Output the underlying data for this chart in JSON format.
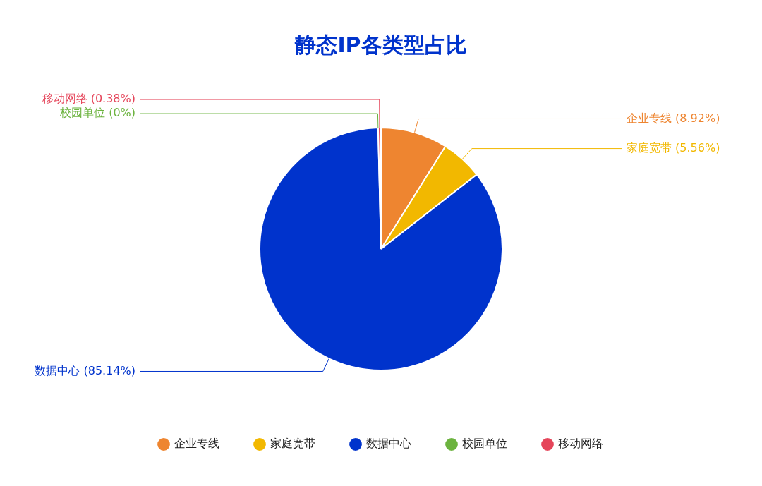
{
  "chart_data": {
    "type": "pie",
    "title": "静态IP各类型占比",
    "categories": [
      "企业专线",
      "家庭宽带",
      "数据中心",
      "校园单位",
      "移动网络"
    ],
    "values": [
      8.92,
      5.56,
      85.14,
      0,
      0.38
    ],
    "value_labels": [
      "(8.92%)",
      "(5.56%)",
      "(85.14%)",
      "(0%)",
      "(0.38%)"
    ],
    "colors": [
      "#ee8530",
      "#f2b800",
      "#0033cc",
      "#6cb33f",
      "#e5455a"
    ],
    "legend": "bottom"
  }
}
